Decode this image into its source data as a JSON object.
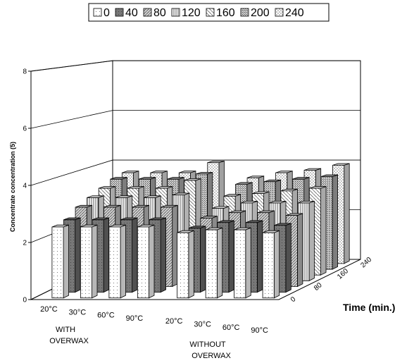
{
  "chart_data": {
    "type": "bar",
    "subtype": "3d-clustered-columns",
    "ylabel": "Concentrate concentration (5)",
    "zlabel": "Time (min.)",
    "ylim": [
      0,
      8
    ],
    "yticks": [
      "0",
      "2",
      "4",
      "6",
      "8"
    ],
    "groups": [
      {
        "name": "WITH OVERWAX",
        "label_lines": [
          "WITH",
          "OVERWAX"
        ]
      },
      {
        "name": "WITHOUT OVERWAX",
        "label_lines": [
          "WITHOUT",
          "OVERWAX"
        ]
      }
    ],
    "categories": [
      "20°C",
      "30°C",
      "60°C",
      "90°C",
      "20°C",
      "30°C",
      "60°C",
      "90°C"
    ],
    "depth_ticks": [
      "0",
      "80",
      "160",
      "240"
    ],
    "series": [
      {
        "name": "0",
        "values": [
          2.5,
          2.5,
          2.5,
          2.5,
          2.3,
          2.4,
          2.4,
          2.3
        ]
      },
      {
        "name": "40",
        "values": [
          2.6,
          2.6,
          2.6,
          2.6,
          2.3,
          2.5,
          2.5,
          2.4
        ]
      },
      {
        "name": "80",
        "values": [
          2.9,
          2.9,
          2.9,
          2.9,
          2.5,
          2.7,
          2.7,
          2.6
        ]
      },
      {
        "name": "120",
        "values": [
          3.1,
          3.1,
          3.1,
          3.2,
          2.7,
          2.9,
          2.9,
          2.9
        ]
      },
      {
        "name": "160",
        "values": [
          3.3,
          3.3,
          3.3,
          3.6,
          3.0,
          3.1,
          3.2,
          3.3
        ]
      },
      {
        "name": "200",
        "values": [
          3.5,
          3.5,
          3.5,
          3.7,
          3.3,
          3.4,
          3.5,
          3.6
        ]
      },
      {
        "name": "240",
        "values": [
          3.6,
          3.6,
          3.6,
          4.0,
          3.4,
          3.6,
          3.7,
          3.9
        ]
      }
    ],
    "grid": true,
    "legend": "top"
  },
  "colors": {
    "0": "#f4f4f4",
    "40": "#6b6b6b",
    "80": "#b8b8b8",
    "120": "#ececec",
    "160": "#e0e0e0",
    "200": "#a6a6a6",
    "240": "#d6d6d6"
  }
}
